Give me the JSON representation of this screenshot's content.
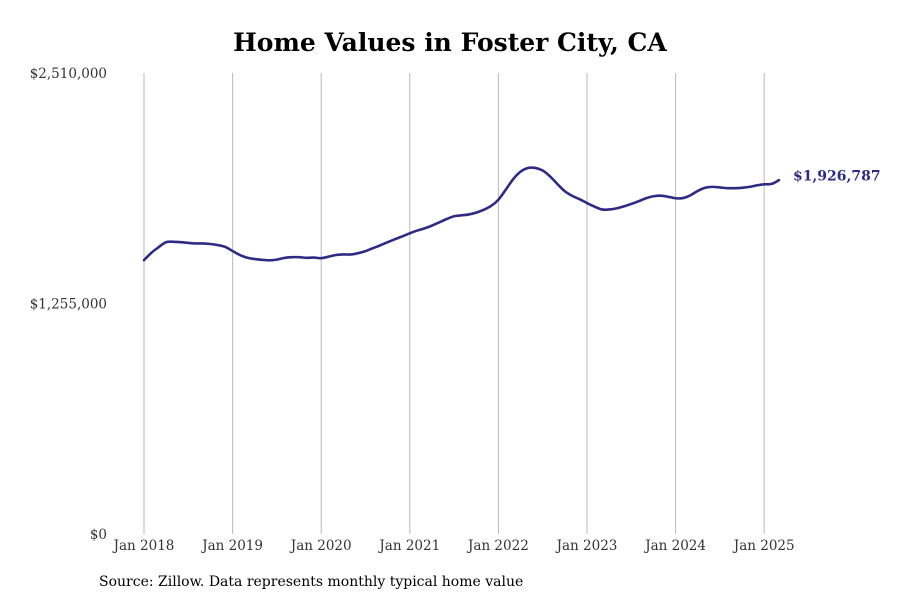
{
  "chart_data": {
    "type": "line",
    "title": "Home Values in Foster City, CA",
    "xlabel": "",
    "ylabel": "",
    "x_tick_labels": [
      "Jan 2018",
      "Jan 2019",
      "Jan 2020",
      "Jan 2021",
      "Jan 2022",
      "Jan 2023",
      "Jan 2024",
      "Jan 2025"
    ],
    "y_tick_labels": [
      "$0",
      "$1,255,000",
      "$2,510,000"
    ],
    "ylim": [
      0,
      2510000
    ],
    "xlim": [
      "2018-01",
      "2025-04"
    ],
    "grid": "vertical",
    "line_color": "#2e2b85",
    "end_label": "$1,926,787",
    "series": [
      {
        "x": [
          "2018-01",
          "2018-02",
          "2018-03",
          "2018-04",
          "2018-05",
          "2018-06",
          "2018-07",
          "2018-08",
          "2018-09",
          "2018-10",
          "2018-11",
          "2018-12",
          "2019-01",
          "2019-02",
          "2019-03",
          "2019-04",
          "2019-05",
          "2019-06",
          "2019-07",
          "2019-08",
          "2019-09",
          "2019-10",
          "2019-11",
          "2019-12",
          "2020-01",
          "2020-02",
          "2020-03",
          "2020-04",
          "2020-05",
          "2020-06",
          "2020-07",
          "2020-08",
          "2020-09",
          "2020-10",
          "2020-11",
          "2020-12",
          "2021-01",
          "2021-02",
          "2021-03",
          "2021-04",
          "2021-05",
          "2021-06",
          "2021-07",
          "2021-08",
          "2021-09",
          "2021-10",
          "2021-11",
          "2021-12",
          "2022-01",
          "2022-02",
          "2022-03",
          "2022-04",
          "2022-05",
          "2022-06",
          "2022-07",
          "2022-08",
          "2022-09",
          "2022-10",
          "2022-11",
          "2022-12",
          "2023-01",
          "2023-02",
          "2023-03",
          "2023-04",
          "2023-05",
          "2023-06",
          "2023-07",
          "2023-08",
          "2023-09",
          "2023-10",
          "2023-11",
          "2023-12",
          "2024-01",
          "2024-02",
          "2024-03",
          "2024-04",
          "2024-05",
          "2024-06",
          "2024-07",
          "2024-08",
          "2024-09",
          "2024-10",
          "2024-11",
          "2024-12",
          "2025-01",
          "2025-02",
          "2025-03"
        ],
        "values": [
          1491000,
          1531000,
          1562000,
          1589000,
          1591000,
          1589000,
          1585000,
          1582000,
          1582000,
          1579000,
          1573000,
          1563000,
          1541000,
          1519000,
          1504000,
          1497000,
          1493000,
          1490000,
          1494000,
          1503000,
          1507000,
          1507000,
          1504000,
          1505000,
          1502000,
          1510000,
          1519000,
          1522000,
          1522000,
          1529000,
          1540000,
          1556000,
          1572000,
          1589000,
          1605000,
          1621000,
          1637000,
          1652000,
          1664000,
          1679000,
          1697000,
          1715000,
          1730000,
          1735000,
          1740000,
          1750000,
          1765000,
          1786000,
          1820000,
          1875000,
          1932000,
          1973000,
          1993000,
          1993000,
          1979000,
          1947000,
          1905000,
          1866000,
          1841000,
          1823000,
          1802000,
          1783000,
          1767000,
          1767000,
          1773000,
          1784000,
          1797000,
          1812000,
          1828000,
          1839000,
          1842000,
          1836000,
          1828000,
          1829000,
          1844000,
          1868000,
          1885000,
          1890000,
          1887000,
          1883000,
          1883000,
          1885000,
          1890000,
          1898000,
          1904000,
          1906000,
          1926787
        ]
      }
    ]
  },
  "source_note": "Source: Zillow. Data represents monthly typical home value"
}
